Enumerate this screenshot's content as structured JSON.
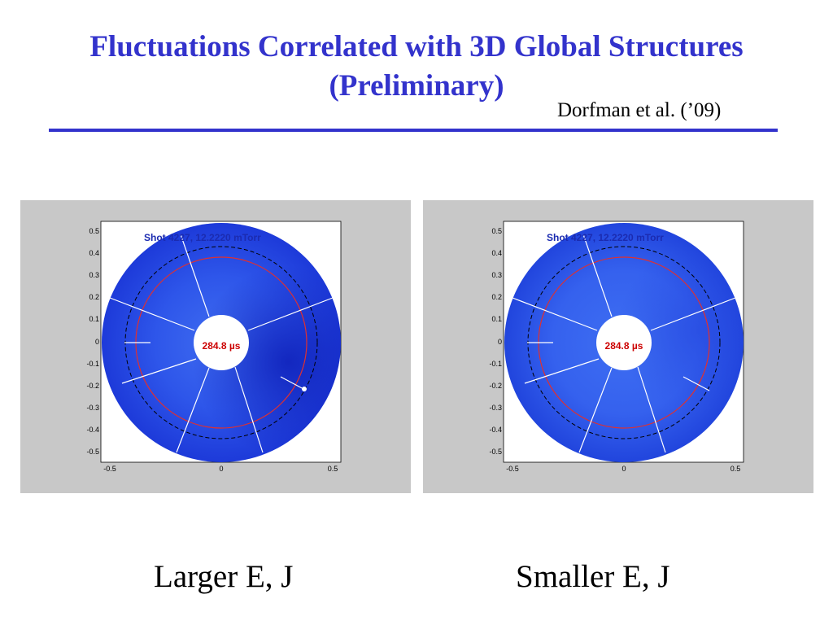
{
  "slide": {
    "title_line1": "Fluctuations Correlated with 3D Global Structures",
    "title_line2": "(Preliminary)",
    "citation": "Dorfman et al. (’09)",
    "accent_color": "#3333cc"
  },
  "panels": [
    {
      "caption": "Larger E, J",
      "shot_label": "Shot 4227, 12.2220 mTorr",
      "time_label": "284.8 µs",
      "x_ticks": [
        "-0.5",
        "0",
        "0.5"
      ],
      "y_ticks": [
        "0.5",
        "0.4",
        "0.3",
        "0.2",
        "0.1",
        "0",
        "-0.1",
        "-0.2",
        "-0.3",
        "-0.4",
        "-0.5"
      ]
    },
    {
      "caption": "Smaller E, J",
      "shot_label": "Shot 4227, 12.2220 mTorr",
      "time_label": "284.8 µs",
      "x_ticks": [
        "-0.5",
        "0",
        "0.5"
      ],
      "y_ticks": [
        "0.5",
        "0.4",
        "0.3",
        "0.2",
        "0.1",
        "0",
        "-0.1",
        "-0.2",
        "-0.3",
        "-0.4",
        "-0.5"
      ]
    }
  ]
}
